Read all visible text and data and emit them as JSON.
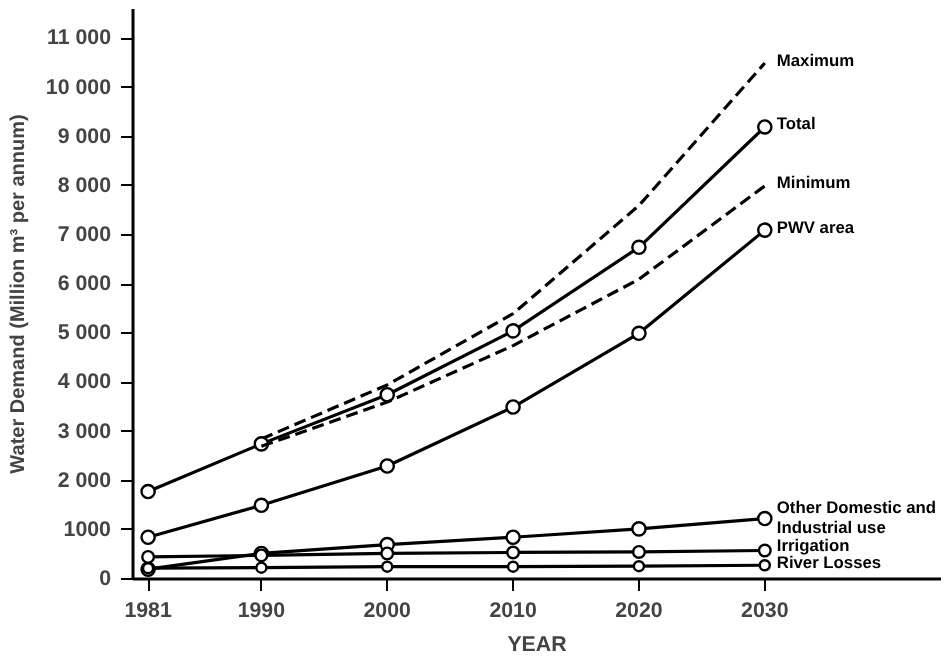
{
  "chart_data": {
    "type": "line",
    "xlabel": "YEAR",
    "ylabel": "Water Demand (Million m³ per annum)",
    "x": [
      1981,
      1990,
      2000,
      2010,
      2020,
      2030
    ],
    "xlim": [
      1979.8,
      2044
    ],
    "ylim": [
      0,
      11600
    ],
    "xticks": [
      1981,
      1990,
      2000,
      2010,
      2020,
      2030
    ],
    "yticks": [
      0,
      1000,
      {
        "value": 2000,
        "label": "2 000"
      },
      {
        "value": 3000,
        "label": "3 000"
      },
      {
        "value": 4000,
        "label": "4 000"
      },
      {
        "value": 5000,
        "label": "5 000"
      },
      {
        "value": 6000,
        "label": "6 000"
      },
      {
        "value": 7000,
        "label": "7 000"
      },
      {
        "value": 8000,
        "label": "8 000"
      },
      {
        "value": 9000,
        "label": "9 000"
      },
      {
        "value": 10000,
        "label": "10 000"
      },
      {
        "value": 11000,
        "label": "11 000"
      }
    ],
    "grid": false,
    "marker": "circle",
    "line_style": "solid",
    "series": [
      {
        "name": "Maximum",
        "color": "#000000",
        "line_style": "dashed",
        "marker": "none",
        "values": [
          null,
          2850,
          3950,
          5400,
          7600,
          10500
        ]
      },
      {
        "name": "Total",
        "color": "#000000",
        "values": [
          1780,
          2750,
          3750,
          5050,
          6750,
          9200
        ]
      },
      {
        "name": "Minimum",
        "color": "#000000",
        "line_style": "dashed",
        "marker": "none",
        "values": [
          null,
          2700,
          3600,
          4750,
          6100,
          8000
        ]
      },
      {
        "name": "PWV area",
        "color": "#000000",
        "values": [
          850,
          1500,
          2300,
          3500,
          5000,
          7100
        ]
      },
      {
        "name": "Other Domestic and Industrial use",
        "color": "#000000",
        "values": [
          200,
          520,
          700,
          850,
          1020,
          1230
        ]
      },
      {
        "name": "Irrigation",
        "color": "#000000",
        "values": [
          450,
          480,
          520,
          540,
          550,
          580
        ]
      },
      {
        "name": "River Losses",
        "color": "#000000",
        "values": [
          220,
          230,
          250,
          250,
          260,
          280
        ]
      }
    ]
  }
}
